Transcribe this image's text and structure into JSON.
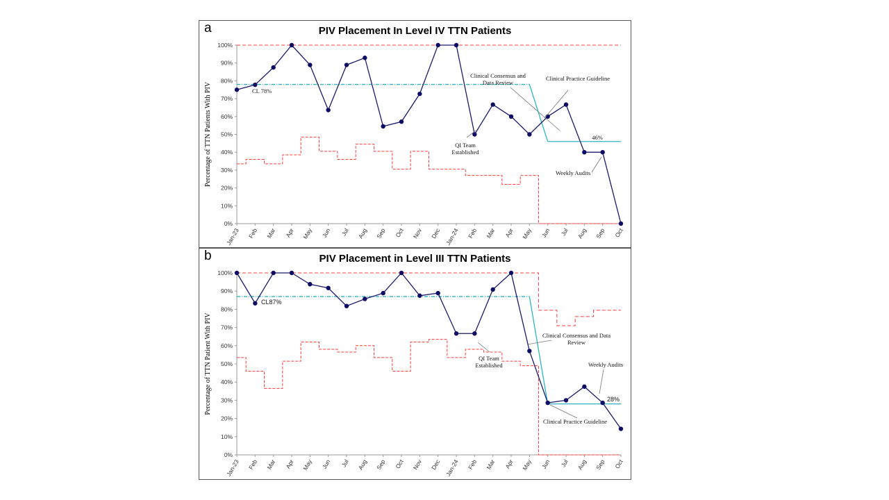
{
  "colors": {
    "line": "#1a1a6e",
    "point": "#0d0d66",
    "center": "#2bb5c2",
    "limits": "#ff3b3b",
    "axis": "#9a9a9a"
  },
  "chart_data": [
    {
      "id": "a",
      "letter": "a",
      "type": "line",
      "title": "PIV Placement In Level IV TTN Patients",
      "ylabel": "Percentage of TTN Patients With PIV",
      "ylim": [
        0,
        100
      ],
      "yticks": [
        "0%",
        "10%",
        "20%",
        "30%",
        "40%",
        "50%",
        "60%",
        "70%",
        "80%",
        "90%",
        "100%"
      ],
      "categories": [
        "Jan-23",
        "Feb",
        "Mar",
        "Apr",
        "May",
        "Jun",
        "Jul",
        "Aug",
        "Sep",
        "Oct",
        "Nov",
        "Dec",
        "Jan-24",
        "Feb",
        "Mar",
        "Apr",
        "May",
        "Jun",
        "Jul",
        "Aug",
        "Sep",
        "Oct"
      ],
      "values": [
        75,
        77.8,
        87.5,
        100,
        88.9,
        63.6,
        88.9,
        92.9,
        54.5,
        57.1,
        72.7,
        100,
        100,
        50,
        66.7,
        60,
        50,
        60,
        66.7,
        40,
        40,
        0
      ],
      "center_line": [
        {
          "from": 0,
          "to": 16,
          "value": 78
        },
        {
          "from": 16,
          "to": 17,
          "value_from": 78,
          "value_to": 46
        },
        {
          "from": 17,
          "to": 21,
          "value": 46
        }
      ],
      "ucl": [
        100,
        100,
        100,
        100,
        100,
        100,
        100,
        100,
        100,
        100,
        100,
        100,
        100,
        100,
        100,
        100,
        100,
        100,
        100,
        100,
        100,
        100
      ],
      "lcl": [
        33.5,
        36,
        33.5,
        38.5,
        48.5,
        40.5,
        36,
        44.5,
        40.5,
        30.5,
        40.5,
        30.5,
        30.5,
        27,
        27,
        22,
        27,
        0,
        0,
        0,
        0,
        0
      ],
      "labels": [
        {
          "text": [
            "CL  78%"
          ],
          "anchor": 1
        },
        {
          "text": [
            "Clinical Consensus and",
            "Data Review"
          ],
          "anchor": 16
        },
        {
          "text": [
            "Clinical Practice Guideline"
          ],
          "anchor": 17
        },
        {
          "text": [
            "46%"
          ]
        },
        {
          "text": [
            "QI Team",
            "Established"
          ],
          "anchor": 13
        },
        {
          "text": [
            "Weekly Audits"
          ],
          "anchor": 20
        }
      ]
    },
    {
      "id": "b",
      "letter": "b",
      "type": "line",
      "title": "PIV Placement in Level III TTN Patients",
      "ylabel": "Percentage of TTN Patient With PIV",
      "ylim": [
        0,
        100
      ],
      "yticks": [
        "0%",
        "10%",
        "20%",
        "30%",
        "40%",
        "50%",
        "60%",
        "70%",
        "80%",
        "90%",
        "100%"
      ],
      "categories": [
        "Jan-23",
        "Feb",
        "Mar",
        "Apr",
        "May",
        "Jun",
        "Jul",
        "Aug",
        "Sep",
        "Oct",
        "Nov",
        "Dec",
        "Jan-24",
        "Feb",
        "Mar",
        "Apr",
        "May",
        "Jun",
        "Jul",
        "Aug",
        "Sep",
        "Oct"
      ],
      "values": [
        100,
        83.3,
        100,
        100,
        93.8,
        91.7,
        81.8,
        85.7,
        88.9,
        100,
        87.5,
        88.9,
        66.7,
        66.7,
        90.9,
        100,
        57.1,
        28.6,
        30,
        37.5,
        28.6,
        14.3
      ],
      "center_line": [
        {
          "from": 0,
          "to": 16,
          "value": 87
        },
        {
          "from": 16,
          "to": 17,
          "value_from": 87,
          "value_to": 28
        },
        {
          "from": 17,
          "to": 21,
          "value": 28
        }
      ],
      "ucl": [
        100,
        100,
        100,
        100,
        100,
        100,
        100,
        100,
        100,
        100,
        100,
        100,
        100,
        100,
        100,
        100,
        100,
        79.5,
        71,
        76,
        79.5,
        79.5
      ],
      "lcl": [
        53.5,
        46,
        36.5,
        51.5,
        62,
        58,
        56.5,
        60,
        53.5,
        46,
        62,
        63.5,
        53.5,
        58,
        56.5,
        51.5,
        49,
        0,
        0,
        0,
        0,
        0
      ],
      "labels": [
        {
          "text": [
            "CL87%"
          ],
          "anchor": 1
        },
        {
          "text": [
            "QI Team",
            "Established"
          ],
          "anchor": 13
        },
        {
          "text": [
            "Clinical Consensus and Data",
            "Review"
          ],
          "anchor": 16
        },
        {
          "text": [
            "Weekly Audits"
          ],
          "anchor": 20
        },
        {
          "text": [
            "28%"
          ]
        },
        {
          "text": [
            "Clinical Practice Guideline"
          ],
          "anchor": 17
        }
      ]
    }
  ]
}
